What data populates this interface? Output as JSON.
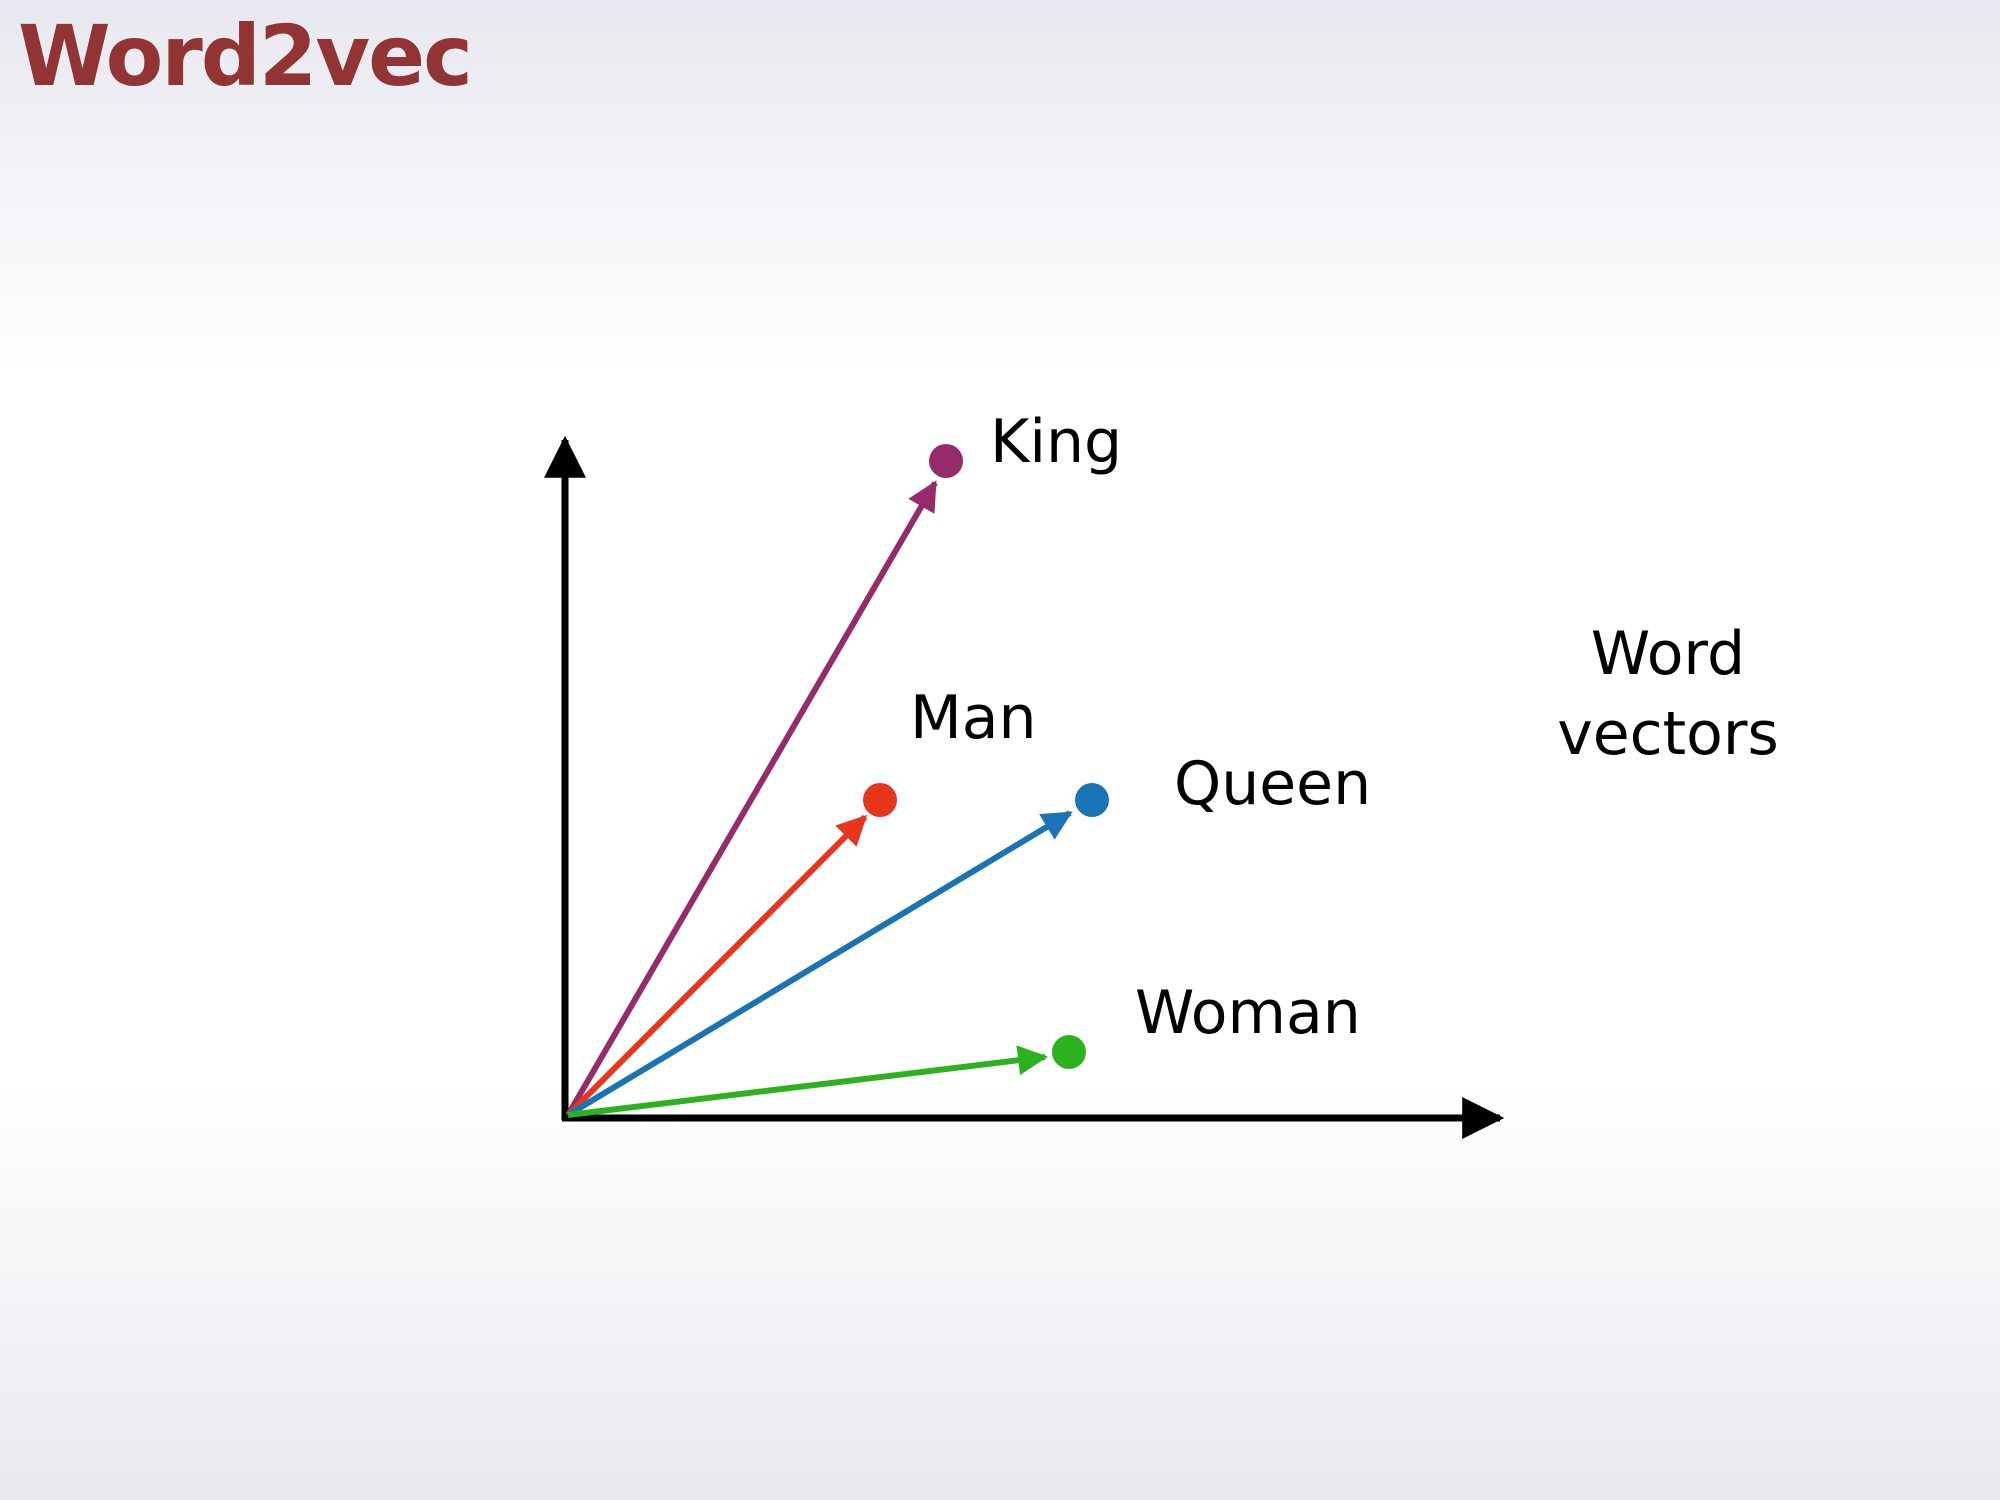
{
  "slide": {
    "title": "Word2vec",
    "title_color": "#933434"
  },
  "caption": {
    "line1": "Word",
    "line2": "vectors"
  },
  "axes_color": "#000000",
  "vectors": [
    {
      "word": "King",
      "color": "#962b6c"
    },
    {
      "word": "Man",
      "color": "#e8351d"
    },
    {
      "word": "Queen",
      "color": "#1a73b5"
    },
    {
      "word": "Woman",
      "color": "#2db21f"
    }
  ]
}
